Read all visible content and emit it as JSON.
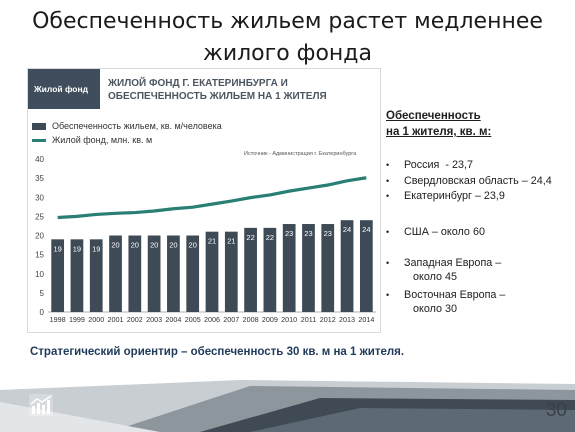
{
  "page": {
    "title_line1": "Обеспеченность жильем растет медленнее",
    "title_line2": "жилого фонда",
    "footnote": "Стратегический ориентир – обеспеченность 30 кв. м на 1 жителя.",
    "page_number": "30"
  },
  "chart_panel": {
    "tag": "Жилой фонд",
    "title_line1": "ЖИЛОЙ ФОНД Г. ЕКАТЕРИНБУРГА И",
    "title_line2": "ОБЕСПЕЧЕННОСТЬ ЖИЛЬЕМ НА 1 ЖИТЕЛЯ",
    "source": "Источник - Администрация г. Екатеринбурга"
  },
  "side_panel": {
    "heading_line1": "Обеспеченность",
    "heading_line2": "на 1 жителя, кв. м:",
    "items": [
      "Россия  - 23,7",
      "Свердловская область – 24,4",
      "Екатеринбург – 23,9",
      "США – около 60",
      "Западная Европа –\n   около 45",
      "Восточная Европа –\n   около 30"
    ]
  },
  "chart_data": {
    "type": "bar",
    "categories": [
      "1998",
      "1999",
      "2000",
      "2001",
      "2002",
      "2003",
      "2004",
      "2005",
      "2006",
      "2007",
      "2008",
      "2009",
      "2010",
      "2011",
      "2012",
      "2013",
      "2014"
    ],
    "series": [
      {
        "name": "Обеспеченность жильем, кв. м/человека",
        "type": "bar",
        "color": "#3e4a56",
        "values": [
          19,
          19,
          19,
          20,
          20,
          20,
          20,
          20,
          21,
          21,
          22,
          22,
          23,
          23,
          23,
          24,
          24
        ]
      },
      {
        "name": "Жилой фонд, млн. кв. м",
        "type": "line",
        "color": "#2a7f74",
        "values": [
          24.7,
          25.0,
          25.5,
          25.8,
          26.0,
          26.4,
          27.0,
          27.4,
          28.2,
          29.0,
          29.9,
          30.6,
          31.6,
          32.4,
          33.2,
          34.3,
          35.1
        ]
      }
    ],
    "ylim": [
      0,
      40
    ],
    "yticks": [
      0,
      5,
      10,
      15,
      20,
      25,
      30,
      35,
      40
    ]
  }
}
